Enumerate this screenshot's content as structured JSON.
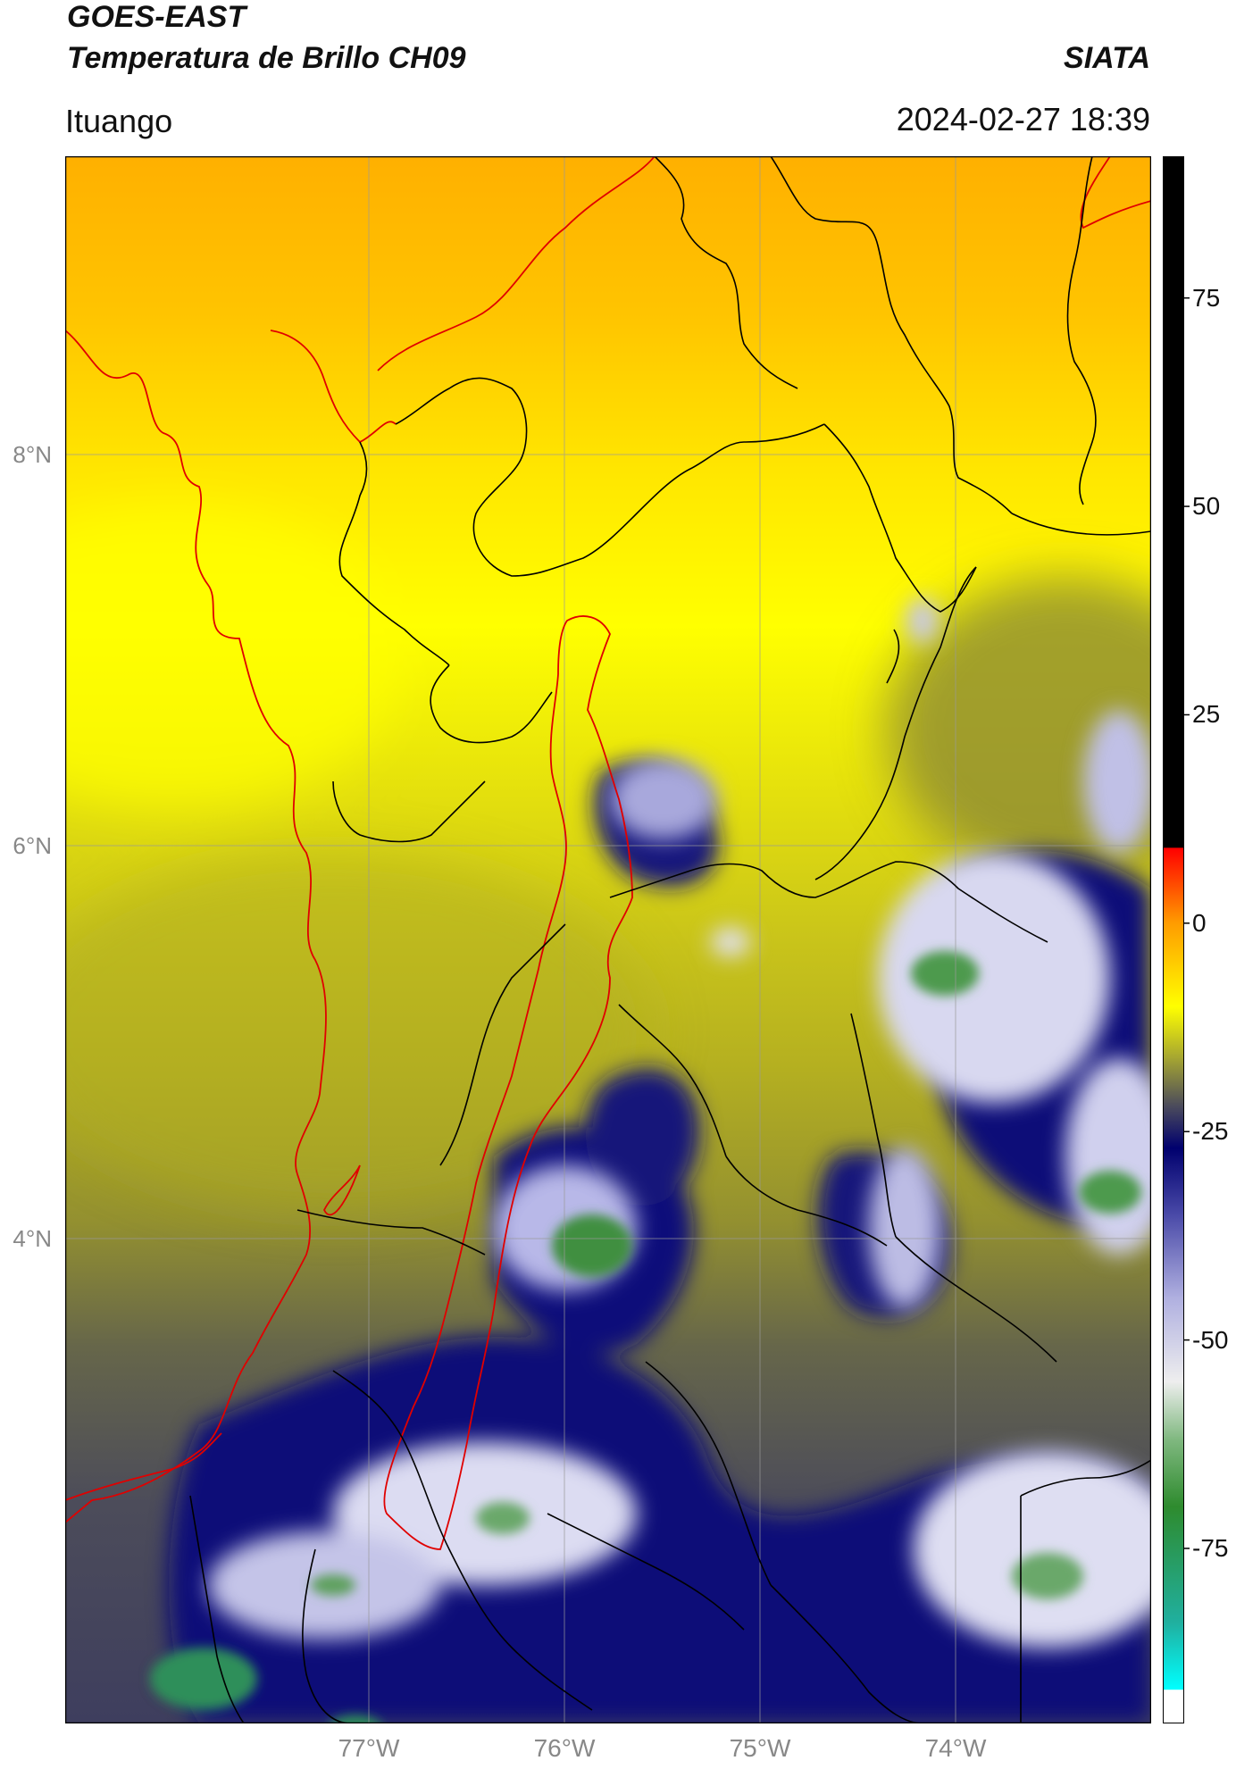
{
  "header": {
    "title_line1": "GOES-EAST",
    "title_line2": "Temperatura de Brillo CH09",
    "brand": "SIATA",
    "location": "Ituango",
    "datetime": "2024-02-27 18:39"
  },
  "axes": {
    "lat_ticks": [
      "8°N",
      "6°N",
      "4°N"
    ],
    "lon_ticks": [
      "77°W",
      "76°W",
      "75°W",
      "74°W"
    ]
  },
  "colorbar": {
    "ticks": [
      "75",
      "50",
      "25",
      "0",
      "-25",
      "-50",
      "-75"
    ],
    "tick_values": [
      75,
      50,
      25,
      0,
      -25,
      -50,
      -75
    ],
    "min": -96,
    "max": 92,
    "stops": [
      {
        "v": -96,
        "c": "#ffffff"
      },
      {
        "v": -92,
        "c": "#ffffff"
      },
      {
        "v": -91.9,
        "c": "#00ffff"
      },
      {
        "v": -84,
        "c": "#20b0a0"
      },
      {
        "v": -70,
        "c": "#2e8b2e"
      },
      {
        "v": -62,
        "c": "#7fb87f"
      },
      {
        "v": -55,
        "c": "#eeeeee"
      },
      {
        "v": -45,
        "c": "#b0b0e0"
      },
      {
        "v": -35,
        "c": "#4a4aa8"
      },
      {
        "v": -27,
        "c": "#00006e"
      },
      {
        "v": -22,
        "c": "#4a4a5c"
      },
      {
        "v": -16,
        "c": "#a8a830"
      },
      {
        "v": -10,
        "c": "#ffff00"
      },
      {
        "v": 0,
        "c": "#ff9c00"
      },
      {
        "v": 9,
        "c": "#ff0000"
      },
      {
        "v": 9.1,
        "c": "#000000"
      },
      {
        "v": 92,
        "c": "#000000"
      }
    ]
  },
  "colors": {
    "boundary_black": "#000000",
    "boundary_red": "#e00000",
    "gridline": "#999999"
  }
}
